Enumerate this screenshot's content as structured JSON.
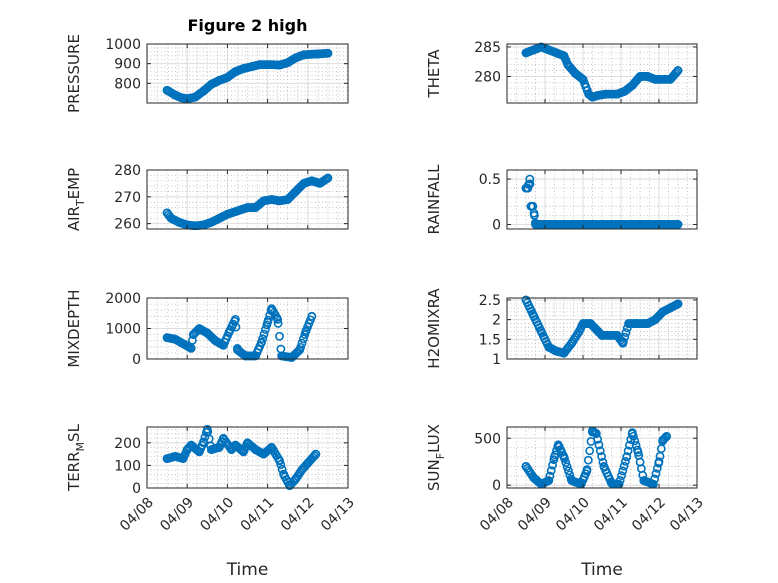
{
  "figure": {
    "title": "Figure 2 high"
  },
  "style": {
    "marker_color": "#0072bd"
  },
  "chart_data": [
    {
      "id": "pressure",
      "type": "scatter",
      "title": "Figure 2 high",
      "ylabel": "PRESSURE",
      "ylim": [
        700,
        1000
      ],
      "yticks": [
        800,
        900,
        1000
      ],
      "ytick_labels": [
        "800",
        "900",
        "1000"
      ],
      "xlim": [
        0,
        5
      ],
      "xticks": [],
      "xtick_labels": [],
      "xlabel": "",
      "anchors": [
        [
          0.5,
          765
        ],
        [
          0.7,
          740
        ],
        [
          0.85,
          727
        ],
        [
          1.0,
          722
        ],
        [
          1.2,
          730
        ],
        [
          1.4,
          760
        ],
        [
          1.6,
          795
        ],
        [
          1.8,
          815
        ],
        [
          2.0,
          830
        ],
        [
          2.2,
          860
        ],
        [
          2.4,
          875
        ],
        [
          2.6,
          885
        ],
        [
          2.8,
          895
        ],
        [
          3.1,
          895
        ],
        [
          3.3,
          893
        ],
        [
          3.5,
          905
        ],
        [
          3.7,
          930
        ],
        [
          3.9,
          945
        ],
        [
          4.1,
          948
        ],
        [
          4.3,
          950
        ],
        [
          4.5,
          953
        ]
      ]
    },
    {
      "id": "theta",
      "type": "scatter",
      "title": "",
      "ylabel": "THETA",
      "ylim": [
        275.5,
        285.5
      ],
      "yticks": [
        280,
        285
      ],
      "ytick_labels": [
        "280",
        "285"
      ],
      "xlim": [
        0,
        5
      ],
      "xticks": [],
      "xtick_labels": [],
      "xlabel": "",
      "anchors": [
        [
          0.5,
          284.0
        ],
        [
          0.7,
          284.5
        ],
        [
          0.9,
          285.0
        ],
        [
          1.1,
          284.5
        ],
        [
          1.3,
          284.0
        ],
        [
          1.5,
          283.5
        ],
        [
          1.6,
          282.0
        ],
        [
          1.8,
          280.5
        ],
        [
          2.0,
          279.5
        ],
        [
          2.15,
          277.0
        ],
        [
          2.25,
          276.5
        ],
        [
          2.4,
          276.8
        ],
        [
          2.6,
          277.0
        ],
        [
          2.9,
          277.0
        ],
        [
          3.1,
          277.5
        ],
        [
          3.3,
          278.5
        ],
        [
          3.5,
          280.0
        ],
        [
          3.7,
          280.0
        ],
        [
          3.9,
          279.5
        ],
        [
          4.1,
          279.5
        ],
        [
          4.3,
          279.5
        ],
        [
          4.5,
          281.0
        ]
      ]
    },
    {
      "id": "air_temp",
      "type": "scatter",
      "title": "",
      "ylabel": "AIR_TEMP",
      "ylabel_main": "AIR",
      "ylabel_sub": "T",
      "ylabel_rest": "EMP",
      "ylim": [
        258,
        280
      ],
      "yticks": [
        260,
        270,
        280
      ],
      "ytick_labels": [
        "260",
        "270",
        "280"
      ],
      "xlim": [
        0,
        5
      ],
      "xticks": [],
      "xtick_labels": [],
      "xlabel": "",
      "anchors": [
        [
          0.5,
          264
        ],
        [
          0.6,
          262
        ],
        [
          0.8,
          260.5
        ],
        [
          1.0,
          259.5
        ],
        [
          1.2,
          259.2
        ],
        [
          1.4,
          259.5
        ],
        [
          1.6,
          260.5
        ],
        [
          1.8,
          262.0
        ],
        [
          2.0,
          263.5
        ],
        [
          2.3,
          265.0
        ],
        [
          2.5,
          266.0
        ],
        [
          2.7,
          266.0
        ],
        [
          2.9,
          268.5
        ],
        [
          3.1,
          269.0
        ],
        [
          3.3,
          268.5
        ],
        [
          3.5,
          269.0
        ],
        [
          3.7,
          272.0
        ],
        [
          3.9,
          275.0
        ],
        [
          4.1,
          276.0
        ],
        [
          4.3,
          275.0
        ],
        [
          4.5,
          277.0
        ]
      ]
    },
    {
      "id": "rainfall",
      "type": "scatter",
      "title": "",
      "ylabel": "RAINFALL",
      "ylim": [
        -0.05,
        0.6
      ],
      "yticks": [
        0,
        0.5
      ],
      "ytick_labels": [
        "0",
        "0.5"
      ],
      "xlim": [
        0,
        5
      ],
      "xticks": [],
      "xtick_labels": [],
      "xlabel": "",
      "anchors": [
        [
          0.5,
          0.4
        ],
        [
          0.55,
          0.4
        ],
        [
          0.6,
          0.5
        ],
        [
          0.63,
          0.2
        ],
        [
          0.68,
          0.2
        ],
        [
          0.72,
          0.1
        ],
        [
          0.75,
          0.0
        ],
        [
          4.5,
          0.0
        ]
      ]
    },
    {
      "id": "mixdepth",
      "type": "scatter",
      "title": "",
      "ylabel": "MIXDEPTH",
      "ylim": [
        0,
        2000
      ],
      "yticks": [
        0,
        1000,
        2000
      ],
      "ytick_labels": [
        "0",
        "1000",
        "2000"
      ],
      "xlim": [
        0,
        5
      ],
      "xticks": [],
      "xtick_labels": [],
      "xlabel": "",
      "anchors": [
        [
          0.5,
          700
        ],
        [
          0.7,
          650
        ],
        [
          0.9,
          500
        ],
        [
          1.1,
          350
        ],
        [
          1.15,
          800
        ],
        [
          1.3,
          1000
        ],
        [
          1.5,
          850
        ],
        [
          1.7,
          600
        ],
        [
          1.9,
          450
        ],
        [
          2.05,
          900
        ],
        [
          2.2,
          1300
        ],
        [
          2.25,
          300
        ],
        [
          2.45,
          100
        ],
        [
          2.7,
          100
        ],
        [
          2.85,
          550
        ],
        [
          3.0,
          1200
        ],
        [
          3.1,
          1650
        ],
        [
          3.25,
          1300
        ],
        [
          3.35,
          100
        ],
        [
          3.6,
          50
        ],
        [
          3.8,
          300
        ],
        [
          3.95,
          900
        ],
        [
          4.1,
          1400
        ]
      ]
    },
    {
      "id": "h2omixra",
      "type": "scatter",
      "title": "",
      "ylabel": "H2OMIXRA",
      "ylim": [
        1,
        2.55
      ],
      "yticks": [
        1,
        1.5,
        2,
        2.5
      ],
      "ytick_labels": [
        "1",
        "1.5",
        "2",
        "2.5"
      ],
      "xlim": [
        0,
        5
      ],
      "xticks": [],
      "xtick_labels": [],
      "xlabel": "",
      "anchors": [
        [
          0.5,
          2.5
        ],
        [
          0.7,
          2.1
        ],
        [
          0.9,
          1.7
        ],
        [
          1.1,
          1.3
        ],
        [
          1.3,
          1.2
        ],
        [
          1.5,
          1.15
        ],
        [
          1.7,
          1.4
        ],
        [
          1.9,
          1.7
        ],
        [
          2.0,
          1.9
        ],
        [
          2.2,
          1.9
        ],
        [
          2.4,
          1.7
        ],
        [
          2.5,
          1.6
        ],
        [
          2.7,
          1.6
        ],
        [
          2.9,
          1.6
        ],
        [
          3.05,
          1.4
        ],
        [
          3.2,
          1.9
        ],
        [
          3.4,
          1.9
        ],
        [
          3.7,
          1.9
        ],
        [
          3.9,
          2.0
        ],
        [
          4.1,
          2.2
        ],
        [
          4.3,
          2.3
        ],
        [
          4.5,
          2.4
        ]
      ]
    },
    {
      "id": "terr_msl",
      "type": "scatter",
      "title": "",
      "ylabel": "TERR_MSL",
      "ylabel_main": "TERR",
      "ylabel_sub": "M",
      "ylabel_rest": "SL",
      "ylim": [
        0,
        270
      ],
      "yticks": [
        0,
        100,
        200
      ],
      "ytick_labels": [
        "0",
        "100",
        "200"
      ],
      "xlim": [
        0,
        5
      ],
      "xticks": [
        0,
        1,
        2,
        3,
        4,
        5
      ],
      "xtick_labels": [
        "04/08",
        "04/09",
        "04/10",
        "04/11",
        "04/12",
        "04/13"
      ],
      "xlabel": "Time",
      "anchors": [
        [
          0.5,
          130
        ],
        [
          0.7,
          140
        ],
        [
          0.9,
          130
        ],
        [
          1.0,
          170
        ],
        [
          1.1,
          190
        ],
        [
          1.3,
          160
        ],
        [
          1.4,
          200
        ],
        [
          1.5,
          260
        ],
        [
          1.6,
          170
        ],
        [
          1.8,
          180
        ],
        [
          1.9,
          220
        ],
        [
          2.1,
          170
        ],
        [
          2.2,
          190
        ],
        [
          2.4,
          160
        ],
        [
          2.5,
          200
        ],
        [
          2.7,
          170
        ],
        [
          2.9,
          150
        ],
        [
          3.1,
          180
        ],
        [
          3.3,
          120
        ],
        [
          3.4,
          60
        ],
        [
          3.55,
          10
        ],
        [
          3.7,
          40
        ],
        [
          3.85,
          80
        ],
        [
          4.0,
          110
        ],
        [
          4.2,
          150
        ]
      ]
    },
    {
      "id": "sun_flux",
      "type": "scatter",
      "title": "",
      "ylabel": "SUN_FLUX",
      "ylabel_main": "SUN",
      "ylabel_sub": "F",
      "ylabel_rest": "LUX",
      "ylim": [
        -30,
        620
      ],
      "yticks": [
        0,
        500
      ],
      "ytick_labels": [
        "0",
        "500"
      ],
      "xlim": [
        0,
        5
      ],
      "xticks": [
        0,
        1,
        2,
        3,
        4,
        5
      ],
      "xtick_labels": [
        "04/08",
        "04/09",
        "04/10",
        "04/11",
        "04/12",
        "04/13"
      ],
      "xlabel": "Time",
      "anchors": [
        [
          0.5,
          200
        ],
        [
          0.7,
          80
        ],
        [
          0.9,
          10
        ],
        [
          1.1,
          50
        ],
        [
          1.25,
          300
        ],
        [
          1.35,
          430
        ],
        [
          1.5,
          300
        ],
        [
          1.7,
          50
        ],
        [
          1.95,
          10
        ],
        [
          2.1,
          150
        ],
        [
          2.25,
          580
        ],
        [
          2.35,
          550
        ],
        [
          2.55,
          200
        ],
        [
          2.75,
          20
        ],
        [
          2.95,
          10
        ],
        [
          3.15,
          300
        ],
        [
          3.3,
          560
        ],
        [
          3.45,
          350
        ],
        [
          3.6,
          50
        ],
        [
          3.85,
          10
        ],
        [
          4.0,
          250
        ],
        [
          4.1,
          480
        ],
        [
          4.2,
          520
        ]
      ]
    }
  ]
}
